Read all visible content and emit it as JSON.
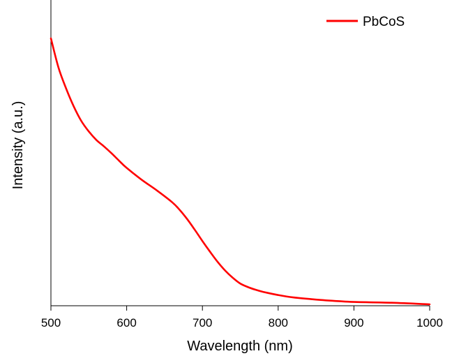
{
  "chart_data": {
    "type": "line",
    "title": "",
    "xlabel": "Wavelength (nm)",
    "ylabel": "Intensity (a.u.)",
    "xlim": [
      500,
      1000
    ],
    "ylim": [
      0,
      1
    ],
    "x_ticks": [
      500,
      600,
      700,
      800,
      900,
      1000
    ],
    "y_ticks_shown": false,
    "grid": false,
    "legend": {
      "position": "top-right"
    },
    "series": [
      {
        "name": "PbCoS",
        "color": "#ff0000",
        "x": [
          500,
          510,
          520,
          530,
          540,
          550,
          560,
          570,
          580,
          590,
          600,
          620,
          640,
          660,
          670,
          680,
          690,
          700,
          710,
          720,
          730,
          740,
          750,
          760,
          770,
          780,
          800,
          820,
          850,
          880,
          900,
          950,
          1000
        ],
        "y": [
          1.0,
          0.89,
          0.812,
          0.745,
          0.69,
          0.65,
          0.618,
          0.594,
          0.568,
          0.54,
          0.513,
          0.468,
          0.428,
          0.384,
          0.355,
          0.32,
          0.28,
          0.238,
          0.198,
          0.16,
          0.127,
          0.1,
          0.078,
          0.065,
          0.055,
          0.047,
          0.035,
          0.026,
          0.018,
          0.012,
          0.009,
          0.006,
          0.0
        ]
      }
    ]
  }
}
